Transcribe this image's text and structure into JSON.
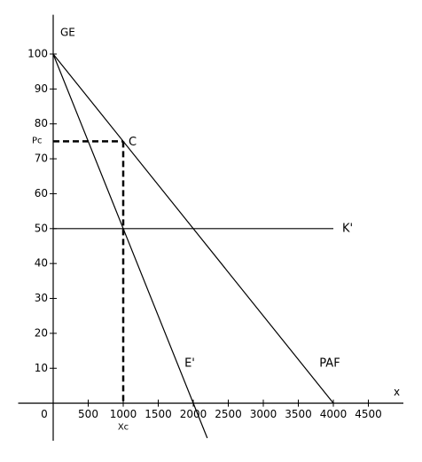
{
  "chart_data": {
    "type": "line",
    "y_axis_label": "GE",
    "x_axis_label": "x",
    "series": [
      {
        "name": "PAF",
        "color": "#000000",
        "x": [
          0,
          4000
        ],
        "values": [
          100,
          0
        ]
      },
      {
        "name": "E'",
        "color": "#000000",
        "x": [
          0,
          2200
        ],
        "values": [
          100,
          -10
        ]
      },
      {
        "name": "K'",
        "color": "#000000",
        "x": [
          0,
          4000
        ],
        "values": [
          50,
          50
        ]
      }
    ],
    "point": {
      "label": "C",
      "x": 1000,
      "y": 75,
      "x_label": "Xc",
      "y_label": "Pc"
    },
    "xlim": [
      -500,
      5000
    ],
    "ylim": [
      -10,
      110
    ],
    "xticks": [
      0,
      500,
      1000,
      1500,
      2000,
      2500,
      3000,
      3500,
      4000,
      4500
    ],
    "yticks": [
      10,
      20,
      30,
      40,
      50,
      60,
      70,
      80,
      90,
      100
    ]
  }
}
